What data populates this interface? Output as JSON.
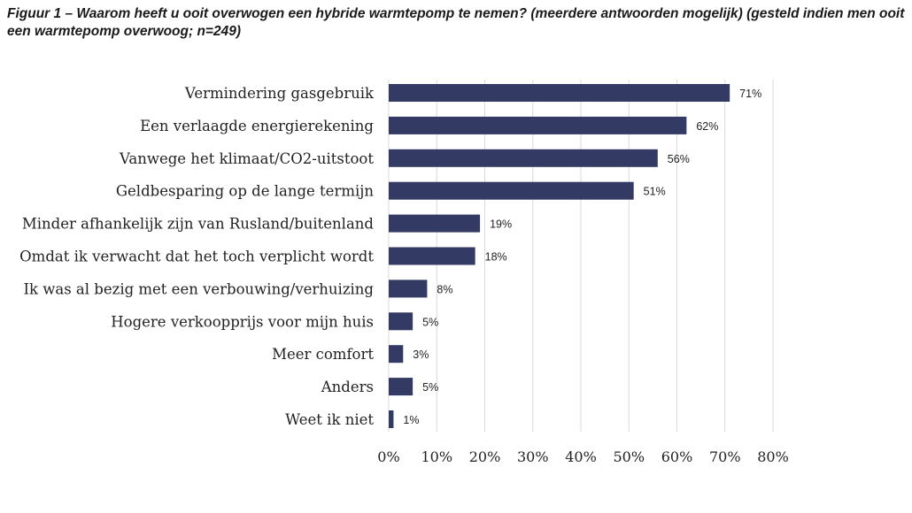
{
  "chart_data": {
    "type": "bar",
    "orientation": "horizontal",
    "title": "Figuur 1 – Waarom heeft u ooit overwogen een hybride warmtepomp te nemen? (meerdere antwoorden mogelijk) (gesteld indien men ooit een warmtepomp overwoog; n=249)",
    "categories": [
      "Vermindering gasgebruik",
      "Een verlaagde energierekening",
      "Vanwege het klimaat/CO2-uitstoot",
      "Geldbesparing op de lange termijn",
      "Minder afhankelijk zijn van Rusland/buitenland",
      "Omdat ik verwacht dat het toch verplicht wordt",
      "Ik was al bezig met een verbouwing/verhuizing",
      "Hogere verkoopprijs voor mijn huis",
      "Meer comfort",
      "Anders",
      "Weet ik niet"
    ],
    "values": [
      71,
      62,
      56,
      51,
      19,
      18,
      8,
      5,
      3,
      5,
      1
    ],
    "value_labels": [
      "71%",
      "62%",
      "56%",
      "51%",
      "19%",
      "18%",
      "8%",
      "5%",
      "3%",
      "5%",
      "1%"
    ],
    "xlim": [
      0,
      80
    ],
    "xticks": [
      0,
      10,
      20,
      30,
      40,
      50,
      60,
      70,
      80
    ],
    "xtick_labels": [
      "0%",
      "10%",
      "20%",
      "30%",
      "40%",
      "50%",
      "60%",
      "70%",
      "80%"
    ],
    "grid": "vertical",
    "bar_color": "#333a63"
  }
}
